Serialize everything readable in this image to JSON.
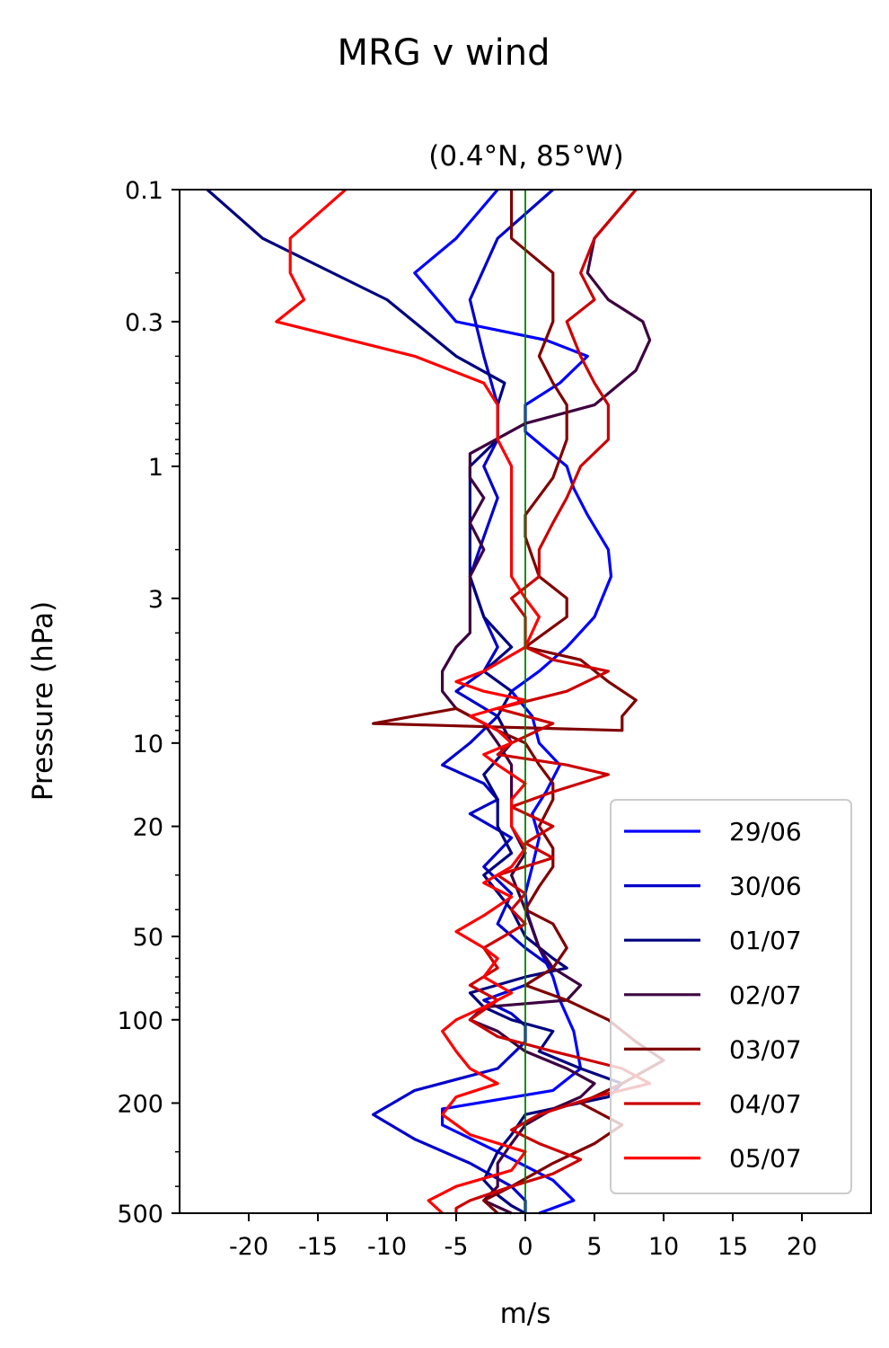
{
  "chart_data": {
    "type": "line",
    "title": "MRG v wind",
    "subtitle": "(0.4°N, 85°W)",
    "xlabel": "m/s",
    "ylabel": "Pressure (hPa)",
    "xlim": [
      -25,
      25
    ],
    "ylim": [
      500,
      0.1
    ],
    "yscale": "log",
    "xticks": [
      -20,
      -15,
      -10,
      -5,
      0,
      5,
      10,
      15,
      20
    ],
    "xtick_labels": [
      "-20",
      "-15",
      "-10",
      "-5",
      "0",
      "5",
      "10",
      "15",
      "20"
    ],
    "yticks": [
      0.1,
      0.3,
      1,
      3,
      10,
      20,
      50,
      100,
      200,
      500
    ],
    "ytick_labels": [
      "0.1",
      "0.3",
      "1",
      "3",
      "10",
      "20",
      "50",
      "100",
      "200",
      "500"
    ],
    "reference_line": {
      "x": 0,
      "color": "#008000"
    },
    "legend_position": "lower-right",
    "grid": false,
    "series": [
      {
        "name": "29/06",
        "color": "#0000ff",
        "points": [
          [
            -2,
            0.1
          ],
          [
            -5,
            0.15
          ],
          [
            -8,
            0.2
          ],
          [
            -5,
            0.3
          ],
          [
            1.5,
            0.35
          ],
          [
            4.5,
            0.4
          ],
          [
            2.5,
            0.5
          ],
          [
            0,
            0.6
          ],
          [
            0,
            0.75
          ],
          [
            3,
            1
          ],
          [
            3.5,
            1.2
          ],
          [
            4.5,
            1.5
          ],
          [
            6,
            2
          ],
          [
            6.2,
            2.5
          ],
          [
            5,
            3.5
          ],
          [
            3,
            4.5
          ],
          [
            1,
            5.5
          ],
          [
            -1,
            6.5
          ],
          [
            0.5,
            8
          ],
          [
            1,
            10
          ],
          [
            2.5,
            12
          ],
          [
            1.5,
            15
          ],
          [
            0.5,
            18
          ],
          [
            1,
            22
          ],
          [
            0.5,
            28
          ],
          [
            0,
            35
          ],
          [
            0.2,
            42
          ],
          [
            1,
            55
          ],
          [
            2,
            70
          ],
          [
            2.5,
            85
          ],
          [
            3.5,
            110
          ],
          [
            4,
            150
          ],
          [
            2,
            180
          ],
          [
            -6,
            210
          ],
          [
            -6,
            240
          ],
          [
            -2,
            300
          ],
          [
            2,
            380
          ],
          [
            3.5,
            450
          ],
          [
            1,
            500
          ]
        ]
      },
      {
        "name": "30/06",
        "color": "#0000cc",
        "points": [
          [
            2,
            0.1
          ],
          [
            -2,
            0.15
          ],
          [
            -4,
            0.25
          ],
          [
            -3,
            0.4
          ],
          [
            -2,
            0.6
          ],
          [
            -2,
            0.8
          ],
          [
            -3,
            1
          ],
          [
            -2,
            1.3
          ],
          [
            -3,
            1.8
          ],
          [
            -4,
            2.5
          ],
          [
            -3,
            3.5
          ],
          [
            -2,
            4.5
          ],
          [
            -3,
            5.5
          ],
          [
            -5,
            6.5
          ],
          [
            -2,
            8
          ],
          [
            -4,
            10
          ],
          [
            -6,
            12
          ],
          [
            -3,
            14
          ],
          [
            -2,
            16
          ],
          [
            -4,
            18
          ],
          [
            -1,
            22
          ],
          [
            -3,
            28
          ],
          [
            -1,
            35
          ],
          [
            -2,
            45
          ],
          [
            0,
            55
          ],
          [
            2,
            65
          ],
          [
            0,
            75
          ],
          [
            -3,
            85
          ],
          [
            -1,
            95
          ],
          [
            0,
            105
          ],
          [
            0,
            120
          ],
          [
            -2,
            150
          ],
          [
            -8,
            180
          ],
          [
            -11,
            220
          ],
          [
            -8,
            270
          ],
          [
            -4,
            330
          ],
          [
            -1,
            400
          ],
          [
            0,
            450
          ],
          [
            0,
            500
          ]
        ]
      },
      {
        "name": "01/07",
        "color": "#000080",
        "points": [
          [
            -23,
            0.1
          ],
          [
            -19,
            0.15
          ],
          [
            -10,
            0.25
          ],
          [
            -5,
            0.4
          ],
          [
            -1.5,
            0.5
          ],
          [
            -2,
            0.6
          ],
          [
            -2,
            0.8
          ],
          [
            -4,
            1
          ],
          [
            -4,
            1.3
          ],
          [
            -4,
            1.8
          ],
          [
            -4,
            2.5
          ],
          [
            -3,
            3.5
          ],
          [
            -1,
            4.5
          ],
          [
            -3,
            5.5
          ],
          [
            -1,
            6.5
          ],
          [
            -2,
            8
          ],
          [
            -1,
            10
          ],
          [
            -3,
            13
          ],
          [
            -2,
            16
          ],
          [
            -2,
            20
          ],
          [
            -1,
            25
          ],
          [
            -3,
            30
          ],
          [
            -1,
            40
          ],
          [
            0,
            50
          ],
          [
            2,
            60
          ],
          [
            3,
            65
          ],
          [
            0,
            70
          ],
          [
            -4,
            80
          ],
          [
            -3,
            90
          ],
          [
            -1,
            100
          ],
          [
            2,
            110
          ],
          [
            1,
            130
          ],
          [
            4,
            150
          ],
          [
            7,
            170
          ],
          [
            6,
            190
          ],
          [
            0,
            220
          ],
          [
            -1,
            260
          ],
          [
            -2,
            300
          ],
          [
            -3,
            380
          ],
          [
            -2,
            430
          ],
          [
            -1,
            470
          ],
          [
            0,
            500
          ]
        ]
      },
      {
        "name": "02/07",
        "color": "#3d0040",
        "points": [
          [
            8,
            0.1
          ],
          [
            5,
            0.15
          ],
          [
            4.5,
            0.2
          ],
          [
            6,
            0.25
          ],
          [
            8.5,
            0.3
          ],
          [
            9,
            0.35
          ],
          [
            8,
            0.45
          ],
          [
            5,
            0.6
          ],
          [
            0,
            0.7
          ],
          [
            -4,
            0.9
          ],
          [
            -4,
            1.1
          ],
          [
            -3,
            1.3
          ],
          [
            -4,
            1.6
          ],
          [
            -3,
            2
          ],
          [
            -4,
            2.5
          ],
          [
            -4,
            3
          ],
          [
            -4,
            3.5
          ],
          [
            -4,
            4
          ],
          [
            -5,
            4.5
          ],
          [
            -6,
            5.5
          ],
          [
            -6,
            6.5
          ],
          [
            -5,
            7.5
          ],
          [
            -3,
            8.5
          ],
          [
            -2,
            10
          ],
          [
            -1,
            12
          ],
          [
            -1,
            16
          ],
          [
            -1,
            20
          ],
          [
            0,
            25
          ],
          [
            -1,
            30
          ],
          [
            0,
            40
          ],
          [
            1,
            55
          ],
          [
            2,
            65
          ],
          [
            4,
            75
          ],
          [
            3,
            85
          ],
          [
            -3,
            90
          ],
          [
            -4,
            100
          ],
          [
            -2,
            110
          ],
          [
            0,
            130
          ],
          [
            3,
            150
          ],
          [
            5,
            170
          ],
          [
            4,
            190
          ],
          [
            2,
            210
          ],
          [
            0,
            240
          ],
          [
            -1,
            280
          ],
          [
            -2,
            330
          ],
          [
            -2,
            400
          ],
          [
            -3,
            450
          ],
          [
            -1,
            500
          ]
        ]
      },
      {
        "name": "03/07",
        "color": "#800000",
        "points": [
          [
            -1,
            0.1
          ],
          [
            -1,
            0.15
          ],
          [
            2,
            0.2
          ],
          [
            2,
            0.3
          ],
          [
            1,
            0.4
          ],
          [
            2,
            0.5
          ],
          [
            3,
            0.6
          ],
          [
            3,
            0.8
          ],
          [
            2,
            1.1
          ],
          [
            0,
            1.5
          ],
          [
            0,
            1.8
          ],
          [
            1,
            2.5
          ],
          [
            3,
            3
          ],
          [
            3,
            3.5
          ],
          [
            0,
            4.5
          ],
          [
            4,
            5
          ],
          [
            6,
            6
          ],
          [
            8,
            7
          ],
          [
            7,
            8
          ],
          [
            7,
            9
          ],
          [
            -11,
            8.5
          ],
          [
            -5,
            7.5
          ],
          [
            -2,
            9
          ],
          [
            0,
            10
          ],
          [
            1,
            12
          ],
          [
            2,
            14
          ],
          [
            2,
            16
          ],
          [
            1,
            20
          ],
          [
            2,
            24
          ],
          [
            2,
            28
          ],
          [
            1,
            33
          ],
          [
            0,
            40
          ],
          [
            2,
            45
          ],
          [
            3,
            55
          ],
          [
            2,
            65
          ],
          [
            0,
            75
          ],
          [
            3,
            85
          ],
          [
            6,
            100
          ],
          [
            8,
            120
          ],
          [
            10,
            140
          ],
          [
            7,
            170
          ],
          [
            4,
            200
          ],
          [
            7,
            240
          ],
          [
            5,
            280
          ],
          [
            2,
            330
          ],
          [
            -1,
            400
          ],
          [
            -3,
            450
          ],
          [
            -2,
            500
          ]
        ]
      },
      {
        "name": "04/07",
        "color": "#cc0000",
        "points": [
          [
            8,
            0.1
          ],
          [
            5,
            0.15
          ],
          [
            4,
            0.2
          ],
          [
            5,
            0.25
          ],
          [
            3,
            0.3
          ],
          [
            4,
            0.4
          ],
          [
            5,
            0.5
          ],
          [
            6,
            0.6
          ],
          [
            6,
            0.7
          ],
          [
            6,
            0.8
          ],
          [
            4,
            1
          ],
          [
            3,
            1.3
          ],
          [
            2,
            1.6
          ],
          [
            1,
            2
          ],
          [
            1,
            2.5
          ],
          [
            -1,
            3
          ],
          [
            0,
            3.5
          ],
          [
            0,
            4.5
          ],
          [
            2,
            5
          ],
          [
            6,
            5.5
          ],
          [
            3,
            6.5
          ],
          [
            -2,
            7.5
          ],
          [
            2,
            8.5
          ],
          [
            -1,
            10
          ],
          [
            -2,
            11
          ],
          [
            3,
            12
          ],
          [
            6,
            13
          ],
          [
            2,
            15
          ],
          [
            -1,
            17
          ],
          [
            2,
            20
          ],
          [
            0,
            23
          ],
          [
            2,
            26
          ],
          [
            -2,
            30
          ],
          [
            0,
            35
          ],
          [
            -1,
            40
          ],
          [
            0,
            45
          ],
          [
            -3,
            55
          ],
          [
            -2,
            65
          ],
          [
            -4,
            75
          ],
          [
            -2,
            85
          ],
          [
            -4,
            100
          ],
          [
            -2,
            115
          ],
          [
            2,
            130
          ],
          [
            7,
            150
          ],
          [
            9,
            170
          ],
          [
            5,
            190
          ],
          [
            1,
            220
          ],
          [
            -1,
            250
          ],
          [
            1,
            280
          ],
          [
            4,
            320
          ],
          [
            2,
            360
          ],
          [
            -1,
            400
          ],
          [
            -4,
            450
          ],
          [
            -5,
            480
          ],
          [
            -5,
            500
          ]
        ]
      },
      {
        "name": "05/07",
        "color": "#ff0000",
        "points": [
          [
            -13,
            0.1
          ],
          [
            -17,
            0.15
          ],
          [
            -17,
            0.2
          ],
          [
            -16,
            0.25
          ],
          [
            -18,
            0.3
          ],
          [
            -8,
            0.4
          ],
          [
            -3,
            0.5
          ],
          [
            -2,
            0.6
          ],
          [
            -2,
            0.8
          ],
          [
            -1,
            1
          ],
          [
            -1,
            1.3
          ],
          [
            -1,
            1.6
          ],
          [
            -1,
            2
          ],
          [
            -1,
            2.5
          ],
          [
            0,
            3
          ],
          [
            1,
            3.5
          ],
          [
            0,
            4.5
          ],
          [
            -3,
            5.5
          ],
          [
            -5,
            6
          ],
          [
            -3,
            6.5
          ],
          [
            0,
            7
          ],
          [
            -4,
            8
          ],
          [
            -2,
            9
          ],
          [
            -1,
            10
          ],
          [
            -3,
            11
          ],
          [
            -2,
            12
          ],
          [
            0,
            14
          ],
          [
            -1,
            16
          ],
          [
            -1,
            20
          ],
          [
            0,
            24
          ],
          [
            -1,
            28
          ],
          [
            -3,
            32
          ],
          [
            -1,
            36
          ],
          [
            -3,
            42
          ],
          [
            -5,
            48
          ],
          [
            -3,
            55
          ],
          [
            -2,
            60
          ],
          [
            -3,
            70
          ],
          [
            -1,
            80
          ],
          [
            -3,
            90
          ],
          [
            -5,
            100
          ],
          [
            -6,
            110
          ],
          [
            -5,
            130
          ],
          [
            -4,
            150
          ],
          [
            -2,
            170
          ],
          [
            -5,
            190
          ],
          [
            -6,
            220
          ],
          [
            -4,
            260
          ],
          [
            0,
            300
          ],
          [
            -1,
            350
          ],
          [
            -5,
            400
          ],
          [
            -7,
            450
          ],
          [
            -6,
            500
          ]
        ]
      }
    ]
  }
}
